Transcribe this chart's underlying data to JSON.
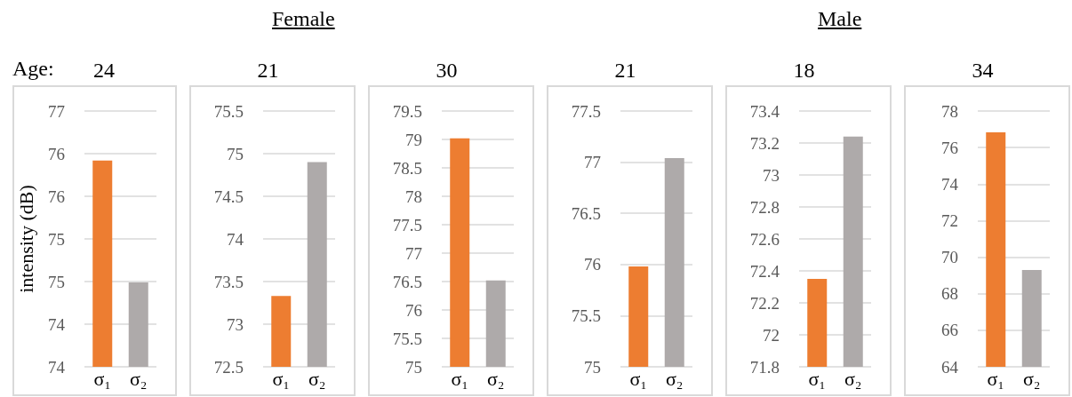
{
  "chart_data": [
    {
      "type": "bar",
      "title": "24",
      "ylabel": "intensity (dB)",
      "annotations": [
        "Age:"
      ],
      "categories": [
        "σ₁",
        "σ₂"
      ],
      "values": [
        76.42,
        74.99
      ],
      "colors": [
        "#ed7d31",
        "#aeaaaa"
      ],
      "ylim": [
        74,
        77
      ],
      "yticks": [
        74,
        {
          "value": 74.5,
          "label": "74"
        },
        75,
        {
          "value": 75.5,
          "label": "75"
        },
        76,
        {
          "value": 76.5,
          "label": "76"
        },
        77
      ],
      "grid": "y"
    },
    {
      "type": "bar",
      "title": "21",
      "annotations": [
        "Female"
      ],
      "categories": [
        "σ₁",
        "σ₂"
      ],
      "values": [
        73.33,
        74.9
      ],
      "colors": [
        "#ed7d31",
        "#aeaaaa"
      ],
      "ylim": [
        72.5,
        75.5
      ],
      "yticks": [
        72.5,
        73,
        73.5,
        74,
        74.5,
        75,
        75.5
      ],
      "grid": "y"
    },
    {
      "type": "bar",
      "title": "30",
      "categories": [
        "σ₁",
        "σ₂"
      ],
      "values": [
        79.02,
        76.52
      ],
      "colors": [
        "#ed7d31",
        "#aeaaaa"
      ],
      "ylim": [
        75,
        79.5
      ],
      "yticks": [
        75,
        75.5,
        76,
        76.5,
        77,
        77.5,
        78,
        78.5,
        79,
        79.5
      ],
      "grid": "y"
    },
    {
      "type": "bar",
      "title": "21",
      "categories": [
        "σ₁",
        "σ₂"
      ],
      "values": [
        75.98,
        77.04
      ],
      "colors": [
        "#ed7d31",
        "#aeaaaa"
      ],
      "ylim": [
        75,
        77.5
      ],
      "yticks": [
        75,
        75.5,
        76,
        76.5,
        77,
        77.5
      ],
      "grid": "y"
    },
    {
      "type": "bar",
      "title": "18",
      "annotations": [
        "Male"
      ],
      "categories": [
        "σ₁",
        "σ₂"
      ],
      "values": [
        72.35,
        73.24
      ],
      "colors": [
        "#ed7d31",
        "#aeaaaa"
      ],
      "ylim": [
        71.8,
        73.4
      ],
      "yticks": [
        71.8,
        72,
        72.2,
        72.4,
        72.6,
        72.8,
        73,
        73.2,
        73.4
      ],
      "grid": "y"
    },
    {
      "type": "bar",
      "title": "34",
      "categories": [
        "σ₁",
        "σ₂"
      ],
      "values": [
        76.83,
        69.3
      ],
      "colors": [
        "#ed7d31",
        "#aeaaaa"
      ],
      "ylim": [
        64,
        78
      ],
      "yticks": [
        64,
        66,
        68,
        70,
        72,
        74,
        76,
        78
      ],
      "grid": "y"
    }
  ]
}
